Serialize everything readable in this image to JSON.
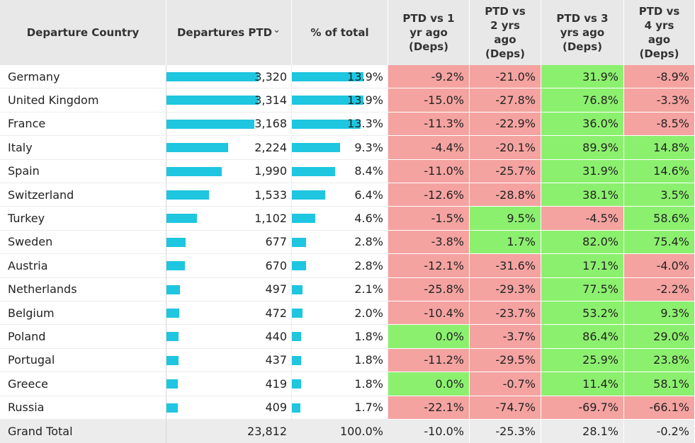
{
  "colors": {
    "bar": "#1ec6e0",
    "positive": "#8cf06f",
    "negative": "#f4a3a0",
    "header_bg": "#e8e8e8",
    "total_bg": "#ececec"
  },
  "headers": [
    "Departure Country",
    "Departures PTD",
    "% of total",
    "PTD vs 1\nyr ago\n(Deps)",
    "PTD vs\n2 yrs\nago\n(Deps)",
    "PTD vs 3\nyrs ago\n(Deps)",
    "PTD vs\n4 yrs\nago\n(Deps)"
  ],
  "sort_indicator": "⌄",
  "chart_data": {
    "type": "table",
    "columns": [
      "Departure Country",
      "Departures PTD",
      "% of total",
      "PTD vs 1 yr ago (Deps)",
      "PTD vs 2 yrs ago (Deps)",
      "PTD vs 3 yrs ago (Deps)",
      "PTD vs 4 yrs ago (Deps)"
    ],
    "rows": [
      {
        "country": "Germany",
        "departures": 3320,
        "departures_label": "3,320",
        "share": 13.9,
        "share_label": "13.9%",
        "vs1": -9.2,
        "vs2": -21.0,
        "vs3": 31.9,
        "vs4": -8.9
      },
      {
        "country": "United Kingdom",
        "departures": 3314,
        "departures_label": "3,314",
        "share": 13.9,
        "share_label": "13.9%",
        "vs1": -15.0,
        "vs2": -27.8,
        "vs3": 76.8,
        "vs4": -3.3
      },
      {
        "country": "France",
        "departures": 3168,
        "departures_label": "3,168",
        "share": 13.3,
        "share_label": "13.3%",
        "vs1": -11.3,
        "vs2": -22.9,
        "vs3": 36.0,
        "vs4": -8.5
      },
      {
        "country": "Italy",
        "departures": 2224,
        "departures_label": "2,224",
        "share": 9.3,
        "share_label": "9.3%",
        "vs1": -4.4,
        "vs2": -20.1,
        "vs3": 89.9,
        "vs4": 14.8
      },
      {
        "country": "Spain",
        "departures": 1990,
        "departures_label": "1,990",
        "share": 8.4,
        "share_label": "8.4%",
        "vs1": -11.0,
        "vs2": -25.7,
        "vs3": 31.9,
        "vs4": 14.6
      },
      {
        "country": "Switzerland",
        "departures": 1533,
        "departures_label": "1,533",
        "share": 6.4,
        "share_label": "6.4%",
        "vs1": -12.6,
        "vs2": -28.8,
        "vs3": 38.1,
        "vs4": 3.5
      },
      {
        "country": "Turkey",
        "departures": 1102,
        "departures_label": "1,102",
        "share": 4.6,
        "share_label": "4.6%",
        "vs1": -1.5,
        "vs2": 9.5,
        "vs3": -4.5,
        "vs4": 58.6
      },
      {
        "country": "Sweden",
        "departures": 677,
        "departures_label": "677",
        "share": 2.8,
        "share_label": "2.8%",
        "vs1": -3.8,
        "vs2": 1.7,
        "vs3": 82.0,
        "vs4": 75.4
      },
      {
        "country": "Austria",
        "departures": 670,
        "departures_label": "670",
        "share": 2.8,
        "share_label": "2.8%",
        "vs1": -12.1,
        "vs2": -31.6,
        "vs3": 17.1,
        "vs4": -4.0
      },
      {
        "country": "Netherlands",
        "departures": 497,
        "departures_label": "497",
        "share": 2.1,
        "share_label": "2.1%",
        "vs1": -25.8,
        "vs2": -29.3,
        "vs3": 77.5,
        "vs4": -2.2
      },
      {
        "country": "Belgium",
        "departures": 472,
        "departures_label": "472",
        "share": 2.0,
        "share_label": "2.0%",
        "vs1": -10.4,
        "vs2": -23.7,
        "vs3": 53.2,
        "vs4": 9.3
      },
      {
        "country": "Poland",
        "departures": 440,
        "departures_label": "440",
        "share": 1.8,
        "share_label": "1.8%",
        "vs1": 0.0,
        "vs2": -3.7,
        "vs3": 86.4,
        "vs4": 29.0
      },
      {
        "country": "Portugal",
        "departures": 437,
        "departures_label": "437",
        "share": 1.8,
        "share_label": "1.8%",
        "vs1": -11.2,
        "vs2": -29.5,
        "vs3": 25.9,
        "vs4": 23.8
      },
      {
        "country": "Greece",
        "departures": 419,
        "departures_label": "419",
        "share": 1.8,
        "share_label": "1.8%",
        "vs1": 0.0,
        "vs2": -0.7,
        "vs3": 11.4,
        "vs4": 58.1
      },
      {
        "country": "Russia",
        "departures": 409,
        "departures_label": "409",
        "share": 1.7,
        "share_label": "1.7%",
        "vs1": -22.1,
        "vs2": -74.7,
        "vs3": -69.7,
        "vs4": -66.1
      }
    ],
    "total": {
      "country": "Grand Total",
      "departures_label": "23,812",
      "share_label": "100.0%",
      "vs1": -10.0,
      "vs2": -25.3,
      "vs3": 28.1,
      "vs4": -0.2
    },
    "bar_max_departures": 3320,
    "bar_max_share": 13.9
  }
}
